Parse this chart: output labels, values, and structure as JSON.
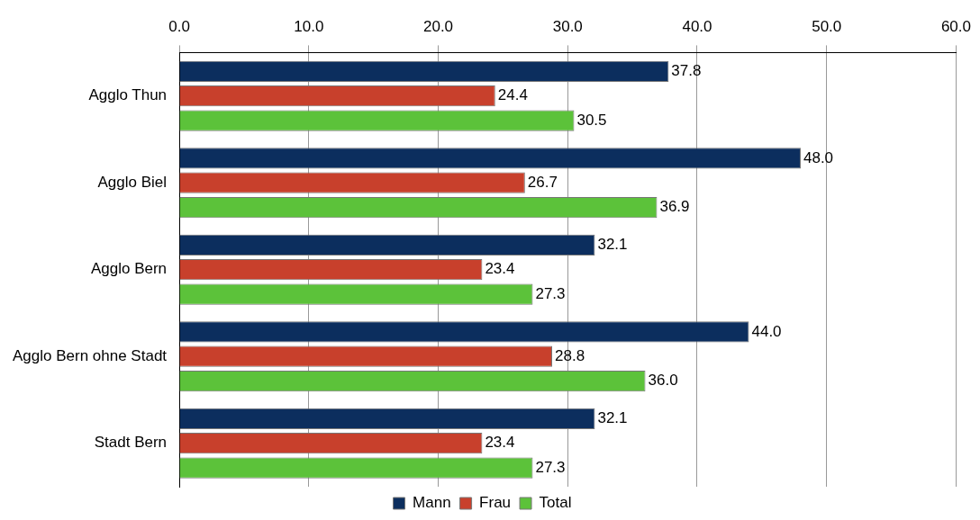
{
  "chart_data": {
    "type": "bar",
    "orientation": "horizontal",
    "categories": [
      "Agglo Thun",
      "Agglo Biel",
      "Agglo Bern",
      "Agglo Bern ohne Stadt",
      "Stadt Bern"
    ],
    "series": [
      {
        "name": "Mann",
        "color": "#0c2e5e",
        "values": [
          37.8,
          48.0,
          32.1,
          44.0,
          32.1
        ],
        "value_labels": [
          "37.8",
          "48.0",
          "32.1",
          "44.0",
          "32.1"
        ]
      },
      {
        "name": "Frau",
        "color": "#c8402c",
        "values": [
          24.4,
          26.7,
          23.4,
          28.8,
          23.4
        ],
        "value_labels": [
          "24.4",
          "26.7",
          "23.4",
          "28.8",
          "23.4"
        ]
      },
      {
        "name": "Total",
        "color": "#5cc23a",
        "values": [
          30.5,
          36.9,
          27.3,
          36.0,
          27.3
        ],
        "value_labels": [
          "30.5",
          "36.9",
          "27.3",
          "36.0",
          "27.3"
        ]
      }
    ],
    "xlim": [
      0,
      60
    ],
    "xticks": [
      {
        "value": 0,
        "label": "0.0"
      },
      {
        "value": 10,
        "label": "10.0"
      },
      {
        "value": 20,
        "label": "20.0"
      },
      {
        "value": 30,
        "label": "30.0"
      },
      {
        "value": 40,
        "label": "40.0"
      },
      {
        "value": 50,
        "label": "50.0"
      },
      {
        "value": 60,
        "label": "60.0"
      }
    ],
    "grid": "x",
    "legend": "bottom"
  }
}
